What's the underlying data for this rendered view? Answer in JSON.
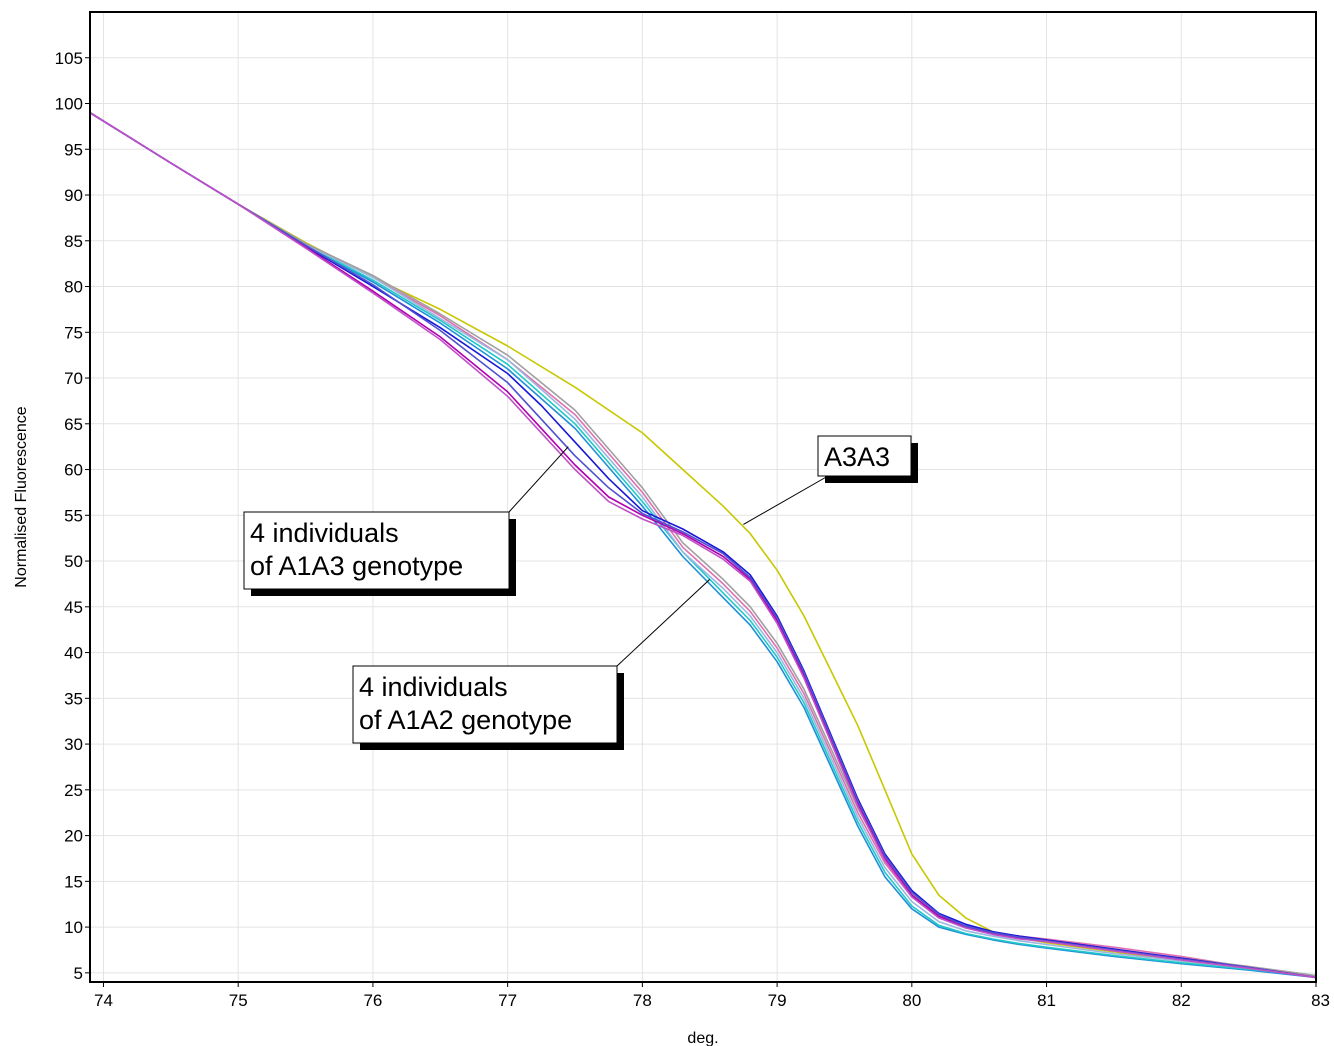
{
  "chart_data": {
    "type": "line",
    "xlabel": "deg.",
    "ylabel": "Normalised Fluorescence",
    "xlim": [
      73.9,
      83.0
    ],
    "ylim": [
      4.0,
      110.0
    ],
    "x_ticks": [
      74,
      75,
      76,
      77,
      78,
      79,
      80,
      81,
      82,
      83
    ],
    "y_ticks": [
      5,
      10,
      15,
      20,
      25,
      30,
      35,
      40,
      45,
      50,
      55,
      60,
      65,
      70,
      75,
      80,
      85,
      90,
      95,
      100,
      105
    ],
    "grid": true,
    "series": [
      {
        "color": "#C8C800",
        "x": [
          73.9,
          74.5,
          75.0,
          75.5,
          76.0,
          76.5,
          77.0,
          77.5,
          78.0,
          78.3,
          78.6,
          78.8,
          79.0,
          79.2,
          79.4,
          79.6,
          79.8,
          80.0,
          80.2,
          80.4,
          80.6,
          80.8,
          81.0,
          81.5,
          82.0,
          82.5,
          83.0
        ],
        "y": [
          99,
          93.5,
          89,
          84.8,
          81,
          77.5,
          73.5,
          69,
          64,
          60,
          56,
          53,
          49,
          44,
          38,
          32,
          25,
          18,
          13.5,
          11,
          9.5,
          8.8,
          8.3,
          7.3,
          6.3,
          5.4,
          4.5
        ]
      },
      {
        "color": "#1E90D8",
        "x": [
          73.9,
          74.5,
          75.0,
          75.5,
          76.0,
          76.5,
          77.0,
          77.5,
          78.0,
          78.3,
          78.6,
          78.8,
          79.0,
          79.2,
          79.4,
          79.6,
          79.8,
          80.0,
          80.2,
          80.4,
          80.6,
          80.8,
          81.0,
          81.5,
          82.0,
          82.5,
          83.0
        ],
        "y": [
          99,
          93.5,
          89,
          84.5,
          80.5,
          76,
          71,
          64.5,
          56,
          50.5,
          46,
          43,
          39,
          34,
          27.5,
          21,
          15.5,
          12,
          10,
          9.2,
          8.6,
          8.1,
          7.7,
          6.8,
          6.0,
          5.3,
          4.5
        ]
      },
      {
        "color": "#20C8C8",
        "x": [
          73.9,
          74.5,
          75.0,
          75.5,
          76.0,
          76.5,
          77.0,
          77.5,
          78.0,
          78.3,
          78.6,
          78.8,
          79.0,
          79.2,
          79.4,
          79.6,
          79.8,
          80.0,
          80.2,
          80.4,
          80.6,
          80.8,
          81.0,
          81.5,
          82.0,
          82.5,
          83.0
        ],
        "y": [
          99,
          93.5,
          89,
          84.5,
          80.7,
          76.3,
          71.5,
          65,
          56.5,
          51,
          46.5,
          43.5,
          39.5,
          34.5,
          28,
          21.5,
          16,
          12.3,
          10.2,
          9.3,
          8.7,
          8.2,
          7.8,
          6.9,
          6.1,
          5.4,
          4.6
        ]
      },
      {
        "color": "#E070B0",
        "x": [
          73.9,
          74.5,
          75.0,
          75.5,
          76.0,
          76.5,
          77.0,
          77.5,
          78.0,
          78.3,
          78.6,
          78.8,
          79.0,
          79.2,
          79.4,
          79.6,
          79.8,
          80.0,
          80.2,
          80.4,
          80.6,
          80.8,
          81.0,
          81.5,
          82.0,
          82.5,
          83.0
        ],
        "y": [
          99,
          93.5,
          89,
          84.6,
          81,
          76.8,
          72,
          66,
          57.5,
          51.5,
          47.5,
          44.5,
          40.5,
          35.5,
          29,
          22.5,
          17,
          13.3,
          11,
          10,
          9.4,
          9.0,
          8.7,
          7.8,
          6.8,
          5.6,
          4.6
        ]
      },
      {
        "color": "#98B8E0",
        "x": [
          73.9,
          74.5,
          75.0,
          75.5,
          76.0,
          76.5,
          77.0,
          77.5,
          78.0,
          78.3,
          78.6,
          78.8,
          79.0,
          79.2,
          79.4,
          79.6,
          79.8,
          80.0,
          80.2,
          80.4,
          80.6,
          80.8,
          81.0,
          81.5,
          82.0,
          82.5,
          83.0
        ],
        "y": [
          99,
          93.5,
          89,
          84.6,
          81,
          76.5,
          72,
          65.5,
          57,
          51,
          47,
          44,
          40,
          35,
          28.5,
          22,
          16.5,
          12.8,
          10.6,
          9.6,
          9.0,
          8.5,
          8.1,
          7.1,
          6.3,
          5.5,
          4.6
        ]
      },
      {
        "color": "#A0A0A0",
        "x": [
          73.9,
          74.5,
          75.0,
          75.5,
          76.0,
          76.5,
          77.0,
          77.5,
          78.0,
          78.3,
          78.6,
          78.8,
          79.0,
          79.2,
          79.4,
          79.6,
          79.8,
          80.0,
          80.2,
          80.4,
          80.6,
          80.8,
          81.0,
          81.5,
          82.0,
          82.5,
          83.0
        ],
        "y": [
          99,
          93.5,
          89,
          84.7,
          81.2,
          77,
          72.5,
          66.5,
          58,
          52,
          48,
          45,
          41,
          36,
          29.5,
          23,
          17.5,
          13.6,
          11.2,
          10.1,
          9.4,
          8.9,
          8.5,
          7.5,
          6.6,
          5.7,
          4.7
        ]
      },
      {
        "color": "#1818D8",
        "x": [
          73.9,
          74.5,
          75.0,
          75.5,
          76.0,
          76.5,
          77.0,
          77.25,
          77.5,
          77.75,
          78.0,
          78.3,
          78.6,
          78.8,
          79.0,
          79.2,
          79.4,
          79.6,
          79.8,
          80.0,
          80.2,
          80.4,
          80.6,
          80.8,
          81.0,
          81.5,
          82.0,
          82.5,
          83.0
        ],
        "y": [
          99,
          93.5,
          89,
          84.4,
          80,
          75.5,
          70.5,
          67,
          63,
          59,
          55.5,
          53.5,
          51,
          48.5,
          44,
          38,
          31,
          24,
          18,
          14,
          11.5,
          10.3,
          9.5,
          9.0,
          8.6,
          7.6,
          6.6,
          5.6,
          4.5
        ]
      },
      {
        "color": "#B000B0",
        "x": [
          73.9,
          74.5,
          75.0,
          75.5,
          76.0,
          76.5,
          77.0,
          77.25,
          77.5,
          77.75,
          78.0,
          78.3,
          78.6,
          78.8,
          79.0,
          79.2,
          79.4,
          79.6,
          79.8,
          80.0,
          80.2,
          80.4,
          80.6,
          80.8,
          81.0,
          81.5,
          82.0,
          82.5,
          83.0
        ],
        "y": [
          99,
          93.5,
          89,
          84.3,
          79.5,
          74.5,
          68.5,
          64.5,
          60.5,
          57,
          55,
          53,
          50.5,
          48,
          43.5,
          37.5,
          30.5,
          23.5,
          17.5,
          13.5,
          11.2,
          10.0,
          9.3,
          8.8,
          8.5,
          7.5,
          6.5,
          5.6,
          4.5
        ]
      },
      {
        "color": "#5050D0",
        "x": [
          73.9,
          74.5,
          75.0,
          75.5,
          76.0,
          76.5,
          77.0,
          77.25,
          77.5,
          77.75,
          78.0,
          78.3,
          78.6,
          78.8,
          79.0,
          79.2,
          79.4,
          79.6,
          79.8,
          80.0,
          80.2,
          80.4,
          80.6,
          80.8,
          81.0,
          81.5,
          82.0,
          82.5,
          83.0
        ],
        "y": [
          99,
          93.5,
          89,
          84.5,
          80.2,
          75.2,
          69.5,
          65.5,
          61.5,
          58,
          55.2,
          53.2,
          50.8,
          48.2,
          43.8,
          37.8,
          30.8,
          23.8,
          17.8,
          13.8,
          11.4,
          10.1,
          9.4,
          8.9,
          8.5,
          7.5,
          6.5,
          5.6,
          4.5
        ]
      },
      {
        "color": "#C050C8",
        "x": [
          73.9,
          74.5,
          75.0,
          75.5,
          76.0,
          76.5,
          77.0,
          77.25,
          77.5,
          77.75,
          78.0,
          78.3,
          78.6,
          78.8,
          79.0,
          79.2,
          79.4,
          79.6,
          79.8,
          80.0,
          80.2,
          80.4,
          80.6,
          80.8,
          81.0,
          81.5,
          82.0,
          82.5,
          83.0
        ],
        "y": [
          99,
          93.5,
          89,
          84.2,
          79.3,
          74.2,
          68,
          64,
          60,
          56.5,
          54.6,
          52.8,
          50.2,
          47.8,
          43.2,
          37.2,
          30.2,
          23.2,
          17.3,
          13.3,
          11.0,
          9.9,
          9.2,
          8.7,
          8.4,
          7.4,
          6.4,
          5.5,
          4.5
        ]
      }
    ],
    "annotations": [
      {
        "lines": [
          "A3A3"
        ],
        "target": [
          78.75,
          54
        ]
      },
      {
        "lines": [
          "4 individuals",
          "of A1A3 genotype"
        ],
        "target": [
          77.45,
          62.5
        ]
      },
      {
        "lines": [
          "4 individuals",
          "of A1A2 genotype"
        ],
        "target": [
          78.5,
          48
        ]
      }
    ]
  }
}
